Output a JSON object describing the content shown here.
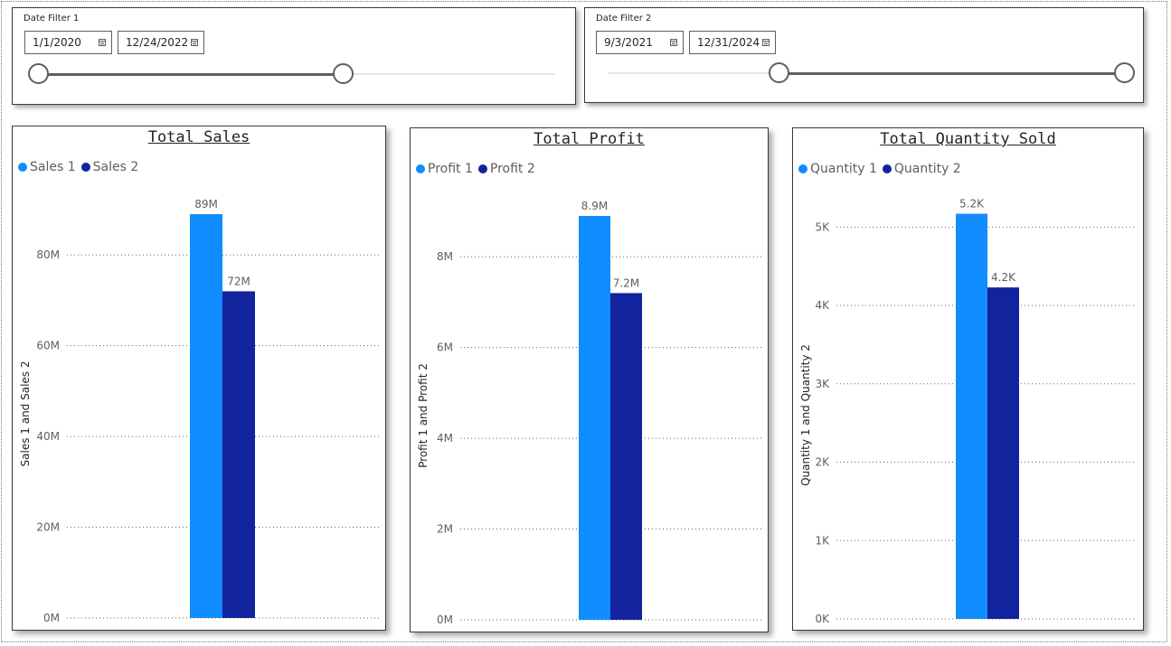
{
  "filters": [
    {
      "title": "Date Filter 1",
      "start": "1/1/2020",
      "end": "12/24/2022",
      "range_fraction": [
        0.0,
        0.59
      ]
    },
    {
      "title": "Date Filter 2",
      "start": "9/3/2021",
      "end": "12/31/2024",
      "range_fraction": [
        0.33,
        1.0
      ]
    }
  ],
  "colors": {
    "series1": "#118dff",
    "series2": "#12239e",
    "gridline": "#666666",
    "axis_text": "#605e5c"
  },
  "chart_data": [
    {
      "type": "bar",
      "title": "Total Sales",
      "ylabel": "Sales 1 and Sales 2",
      "xlabel": "",
      "ylim": [
        0,
        90000000
      ],
      "yticks": [
        0,
        20000000,
        40000000,
        60000000,
        80000000
      ],
      "ytick_labels": [
        "0M",
        "20M",
        "40M",
        "60M",
        "80M"
      ],
      "grid": true,
      "legend_position": "top-left",
      "series": [
        {
          "name": "Sales 1",
          "values": [
            89000000
          ],
          "data_label": "89M"
        },
        {
          "name": "Sales 2",
          "values": [
            72000000
          ],
          "data_label": "72M"
        }
      ]
    },
    {
      "type": "bar",
      "title": "Total Profit",
      "ylabel": "Profit 1 and Profit 2",
      "xlabel": "",
      "ylim": [
        0,
        9000000
      ],
      "yticks": [
        0,
        2000000,
        4000000,
        6000000,
        8000000
      ],
      "ytick_labels": [
        "0M",
        "2M",
        "4M",
        "6M",
        "8M"
      ],
      "grid": true,
      "legend_position": "top-left",
      "series": [
        {
          "name": "Profit 1",
          "values": [
            8900000
          ],
          "data_label": "8.9M"
        },
        {
          "name": "Profit 2",
          "values": [
            7200000
          ],
          "data_label": "7.2M"
        }
      ]
    },
    {
      "type": "bar",
      "title": "Total Quantity Sold",
      "ylabel": "Quantity 1 and Quantity 2",
      "xlabel": "",
      "ylim": [
        0,
        5200
      ],
      "yticks": [
        0,
        1000,
        2000,
        3000,
        4000,
        5000
      ],
      "ytick_labels": [
        "0K",
        "1K",
        "2K",
        "3K",
        "4K",
        "5K"
      ],
      "grid": true,
      "legend_position": "top-left",
      "series": [
        {
          "name": "Quantity 1",
          "values": [
            5170
          ],
          "data_label": "5.2K"
        },
        {
          "name": "Quantity 2",
          "values": [
            4230
          ],
          "data_label": "4.2K"
        }
      ]
    }
  ]
}
